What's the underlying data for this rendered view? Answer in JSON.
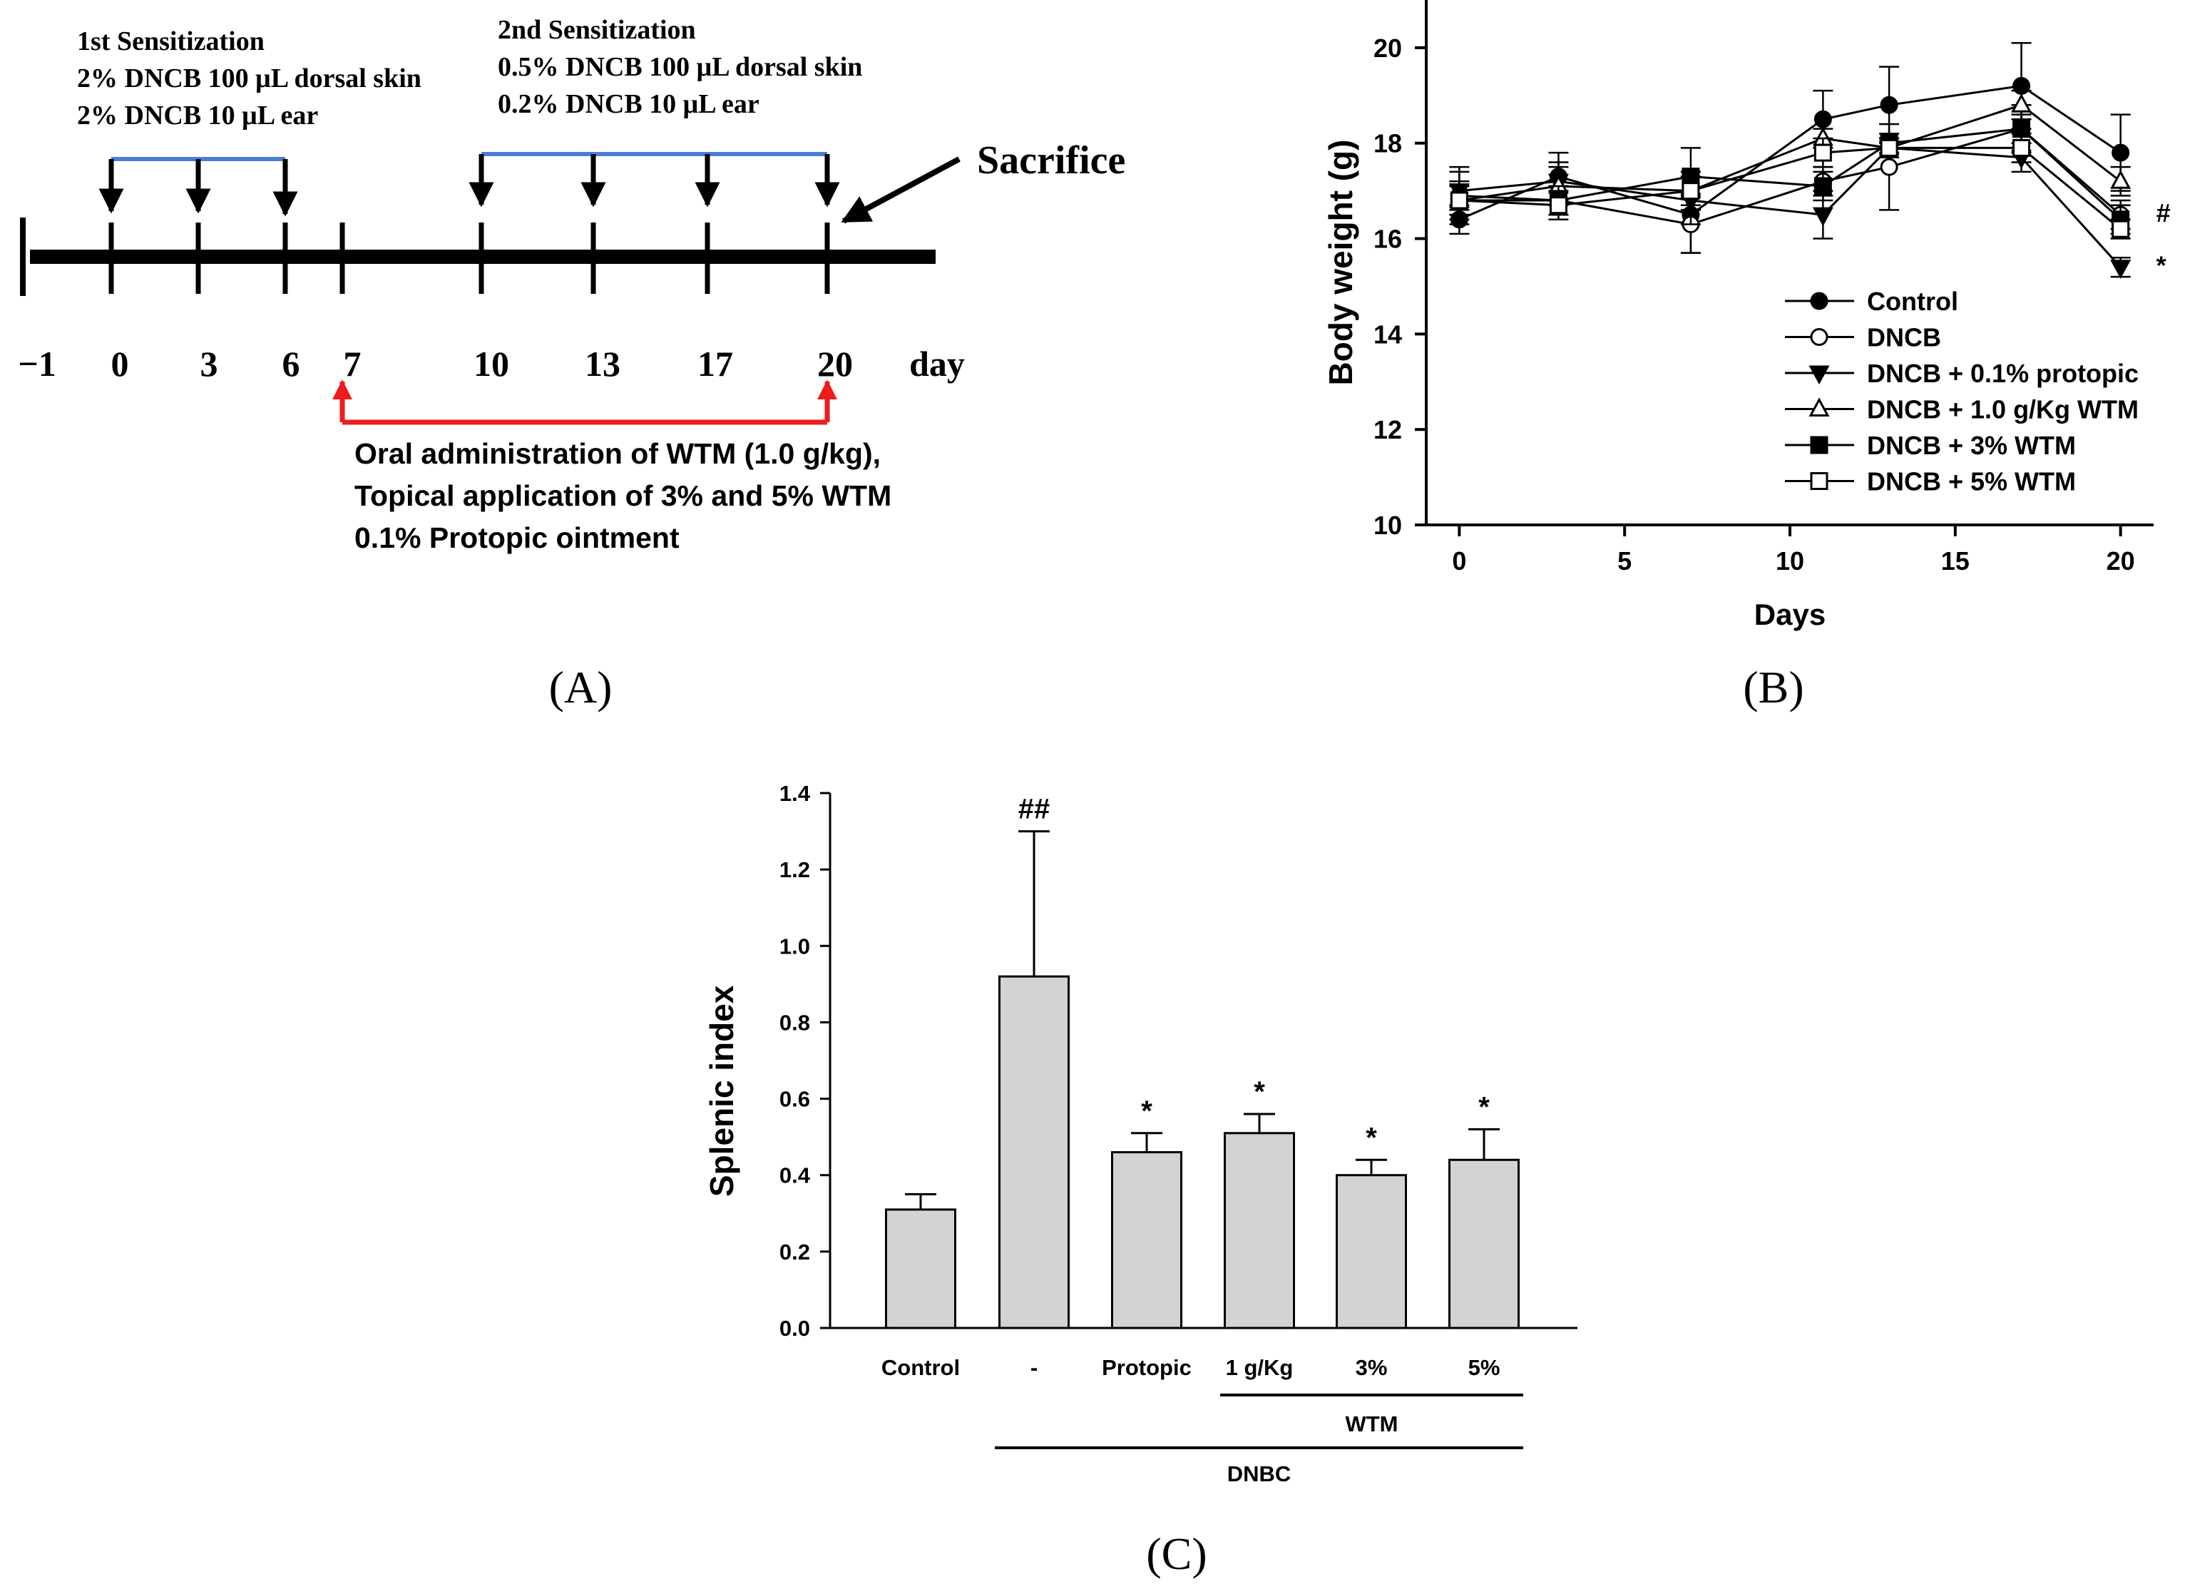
{
  "colors": {
    "timeline": "#000000",
    "sensitization_bracket": "#4a7fd4",
    "treatment_arrow": "#ee1c1c",
    "bar_fill": "#d3d3d3",
    "axis": "#000000"
  },
  "panel_a": {
    "panel_label": "(A)",
    "first_sensitization": {
      "title": "1st Sensitization",
      "line1": "2% DNCB 100 μL dorsal skin",
      "line2": "2% DNCB 10 μL ear",
      "days": [
        0,
        3,
        6
      ]
    },
    "second_sensitization": {
      "title": "2nd Sensitization",
      "line1": "0.5% DNCB 100 μL dorsal skin",
      "line2": "0.2% DNCB 10 μL ear",
      "days": [
        10,
        13,
        17,
        20
      ]
    },
    "sacrifice_label": "Sacrifice",
    "day_ticks": [
      "−1",
      "0",
      "3",
      "6",
      "7",
      "10",
      "13",
      "17",
      "20"
    ],
    "day_unit": "day",
    "treatment": {
      "start_day": 7,
      "end_day": 20,
      "line1": "Oral administration of WTM (1.0 g/kg),",
      "line2": "Topical application of 3% and 5% WTM",
      "line3": "0.1% Protopic ointment"
    }
  },
  "chart_data": [
    {
      "type": "line",
      "panel_label": "(B)",
      "xlabel": "Days",
      "ylabel": "Body weight (g)",
      "xlim": [
        -1,
        21
      ],
      "ylim": [
        10,
        21
      ],
      "xticks": [
        0,
        5,
        10,
        15,
        20
      ],
      "yticks": [
        10,
        12,
        14,
        16,
        18,
        20
      ],
      "x": [
        0,
        3,
        7,
        11,
        13,
        17,
        20
      ],
      "legend_position": "bottom-right",
      "series": [
        {
          "name": "Control",
          "marker": "filled-circle",
          "values": [
            16.4,
            17.3,
            16.5,
            18.5,
            18.8,
            19.2,
            17.8
          ],
          "errors": [
            0.3,
            0.5,
            0.8,
            0.6,
            0.8,
            0.9,
            0.8
          ]
        },
        {
          "name": "DNCB",
          "marker": "open-circle",
          "values": [
            16.9,
            16.8,
            16.3,
            17.2,
            17.5,
            18.3,
            16.5
          ],
          "errors": [
            0.6,
            0.3,
            0.6,
            0.3,
            0.9,
            0.5,
            0.3
          ]
        },
        {
          "name": "DNCB + 0.1% protopic",
          "marker": "filled-triangle-down",
          "values": [
            17.0,
            17.2,
            16.8,
            16.5,
            17.9,
            17.7,
            15.4
          ],
          "errors": [
            0.4,
            0.4,
            0.5,
            0.5,
            0.2,
            0.3,
            0.2
          ]
        },
        {
          "name": "DNCB + 1.0 g/Kg WTM",
          "marker": "open-triangle-up",
          "values": [
            16.8,
            17.1,
            17.0,
            18.1,
            17.9,
            18.8,
            17.2
          ],
          "errors": [
            0.4,
            0.4,
            0.4,
            0.2,
            0.2,
            0.3,
            0.3
          ]
        },
        {
          "name": "DNCB + 3% WTM",
          "marker": "filled-square",
          "values": [
            16.8,
            16.8,
            17.3,
            17.1,
            18.0,
            18.3,
            16.4
          ],
          "errors": [
            0.3,
            0.3,
            0.6,
            0.3,
            0.2,
            0.3,
            0.3
          ]
        },
        {
          "name": "DNCB + 5% WTM",
          "marker": "open-square",
          "values": [
            16.8,
            16.7,
            17.0,
            17.8,
            17.9,
            17.9,
            16.2
          ],
          "errors": [
            0.3,
            0.3,
            0.4,
            0.3,
            0.2,
            0.3,
            0.2
          ]
        }
      ],
      "annotations": [
        {
          "text": "#",
          "x": 20,
          "y": 16.5
        },
        {
          "text": "*",
          "x": 20,
          "y": 15.4
        }
      ]
    },
    {
      "type": "bar",
      "panel_label": "(C)",
      "ylabel": "Splenic index",
      "ylim": [
        0,
        1.4
      ],
      "yticks": [
        "0.0",
        "0.2",
        "0.4",
        "0.6",
        "0.8",
        "1.0",
        "1.2",
        "1.4"
      ],
      "categories": [
        "Control",
        "-",
        "Protopic",
        "1 g/Kg",
        "3%",
        "5%"
      ],
      "values": [
        0.31,
        0.92,
        0.46,
        0.51,
        0.4,
        0.44
      ],
      "errors": [
        0.04,
        0.38,
        0.05,
        0.05,
        0.04,
        0.08
      ],
      "significance": [
        "",
        "##",
        "*",
        "*",
        "*",
        "*"
      ],
      "group_labels": {
        "wtm": {
          "text": "WTM",
          "from": "1 g/Kg",
          "to": "5%"
        },
        "dnbc": {
          "text": "DNBC",
          "from": "-",
          "to": "5%"
        }
      }
    }
  ]
}
